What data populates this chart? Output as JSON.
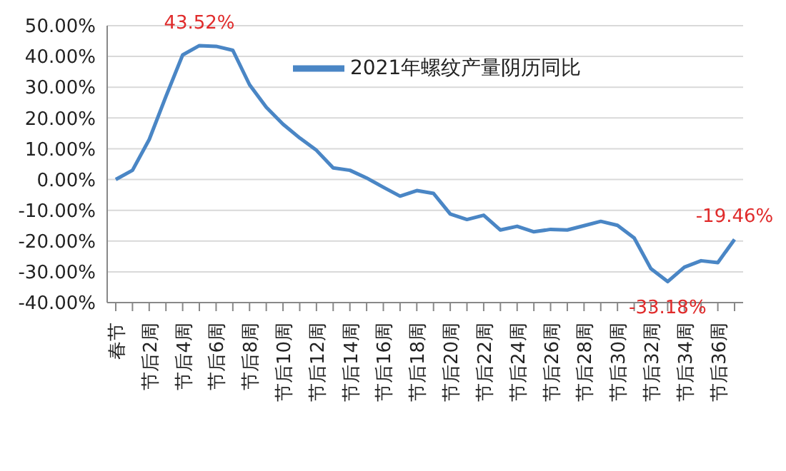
{
  "chart_data": {
    "type": "line",
    "categories": [
      "春节",
      null,
      "节后2周",
      null,
      "节后4周",
      null,
      "节后6周",
      null,
      "节后8周",
      null,
      "节后10周",
      null,
      "节后12周",
      null,
      "节后14周",
      null,
      "节后16周",
      null,
      "节后18周",
      null,
      "节后20周",
      null,
      "节后22周",
      null,
      "节后24周",
      null,
      "节后26周",
      null,
      "节后28周",
      null,
      "节后30周",
      null,
      "节后32周",
      null,
      "节后34周",
      null,
      "节后36周",
      null
    ],
    "series": [
      {
        "name": "2021年螺纹产量阴历同比",
        "color": "#4a86c5",
        "values": [
          0,
          3,
          13,
          27,
          40.5,
          43.52,
          43.3,
          42,
          30.8,
          23.5,
          18,
          13.5,
          9.5,
          3.8,
          3,
          0.5,
          -2.5,
          -5.4,
          -3.6,
          -4.5,
          -11.2,
          -13,
          -11.6,
          -16.4,
          -15.2,
          -17,
          -16.2,
          -16.4,
          -15,
          -13.6,
          -14.9,
          -19,
          -29,
          -33.18,
          -28.5,
          -26.4,
          -27,
          -19.46
        ],
        "value_labels": [
          null,
          null,
          null,
          null,
          null,
          "43.52%",
          null,
          null,
          null,
          null,
          null,
          null,
          null,
          null,
          null,
          null,
          null,
          null,
          null,
          null,
          null,
          null,
          null,
          null,
          null,
          null,
          null,
          null,
          null,
          null,
          null,
          null,
          null,
          "-33.18%",
          null,
          null,
          null,
          "-19.46%"
        ]
      }
    ],
    "ylim": [
      -40,
      50
    ],
    "yticks": [
      {
        "value": -40,
        "label": "-40.00%"
      },
      {
        "value": -30,
        "label": "-30.00%"
      },
      {
        "value": -20,
        "label": "-20.00%"
      },
      {
        "value": -10,
        "label": "-10.00%"
      },
      {
        "value": 0,
        "label": "0.00%"
      },
      {
        "value": 10,
        "label": "10.00%"
      },
      {
        "value": 20,
        "label": "20.00%"
      },
      {
        "value": 30,
        "label": "30.00%"
      },
      {
        "value": 40,
        "label": "40.00%"
      },
      {
        "value": 50,
        "label": "50.00%"
      }
    ],
    "grid": "y",
    "legend": "top right",
    "marker": "none",
    "line_style": "solid"
  }
}
